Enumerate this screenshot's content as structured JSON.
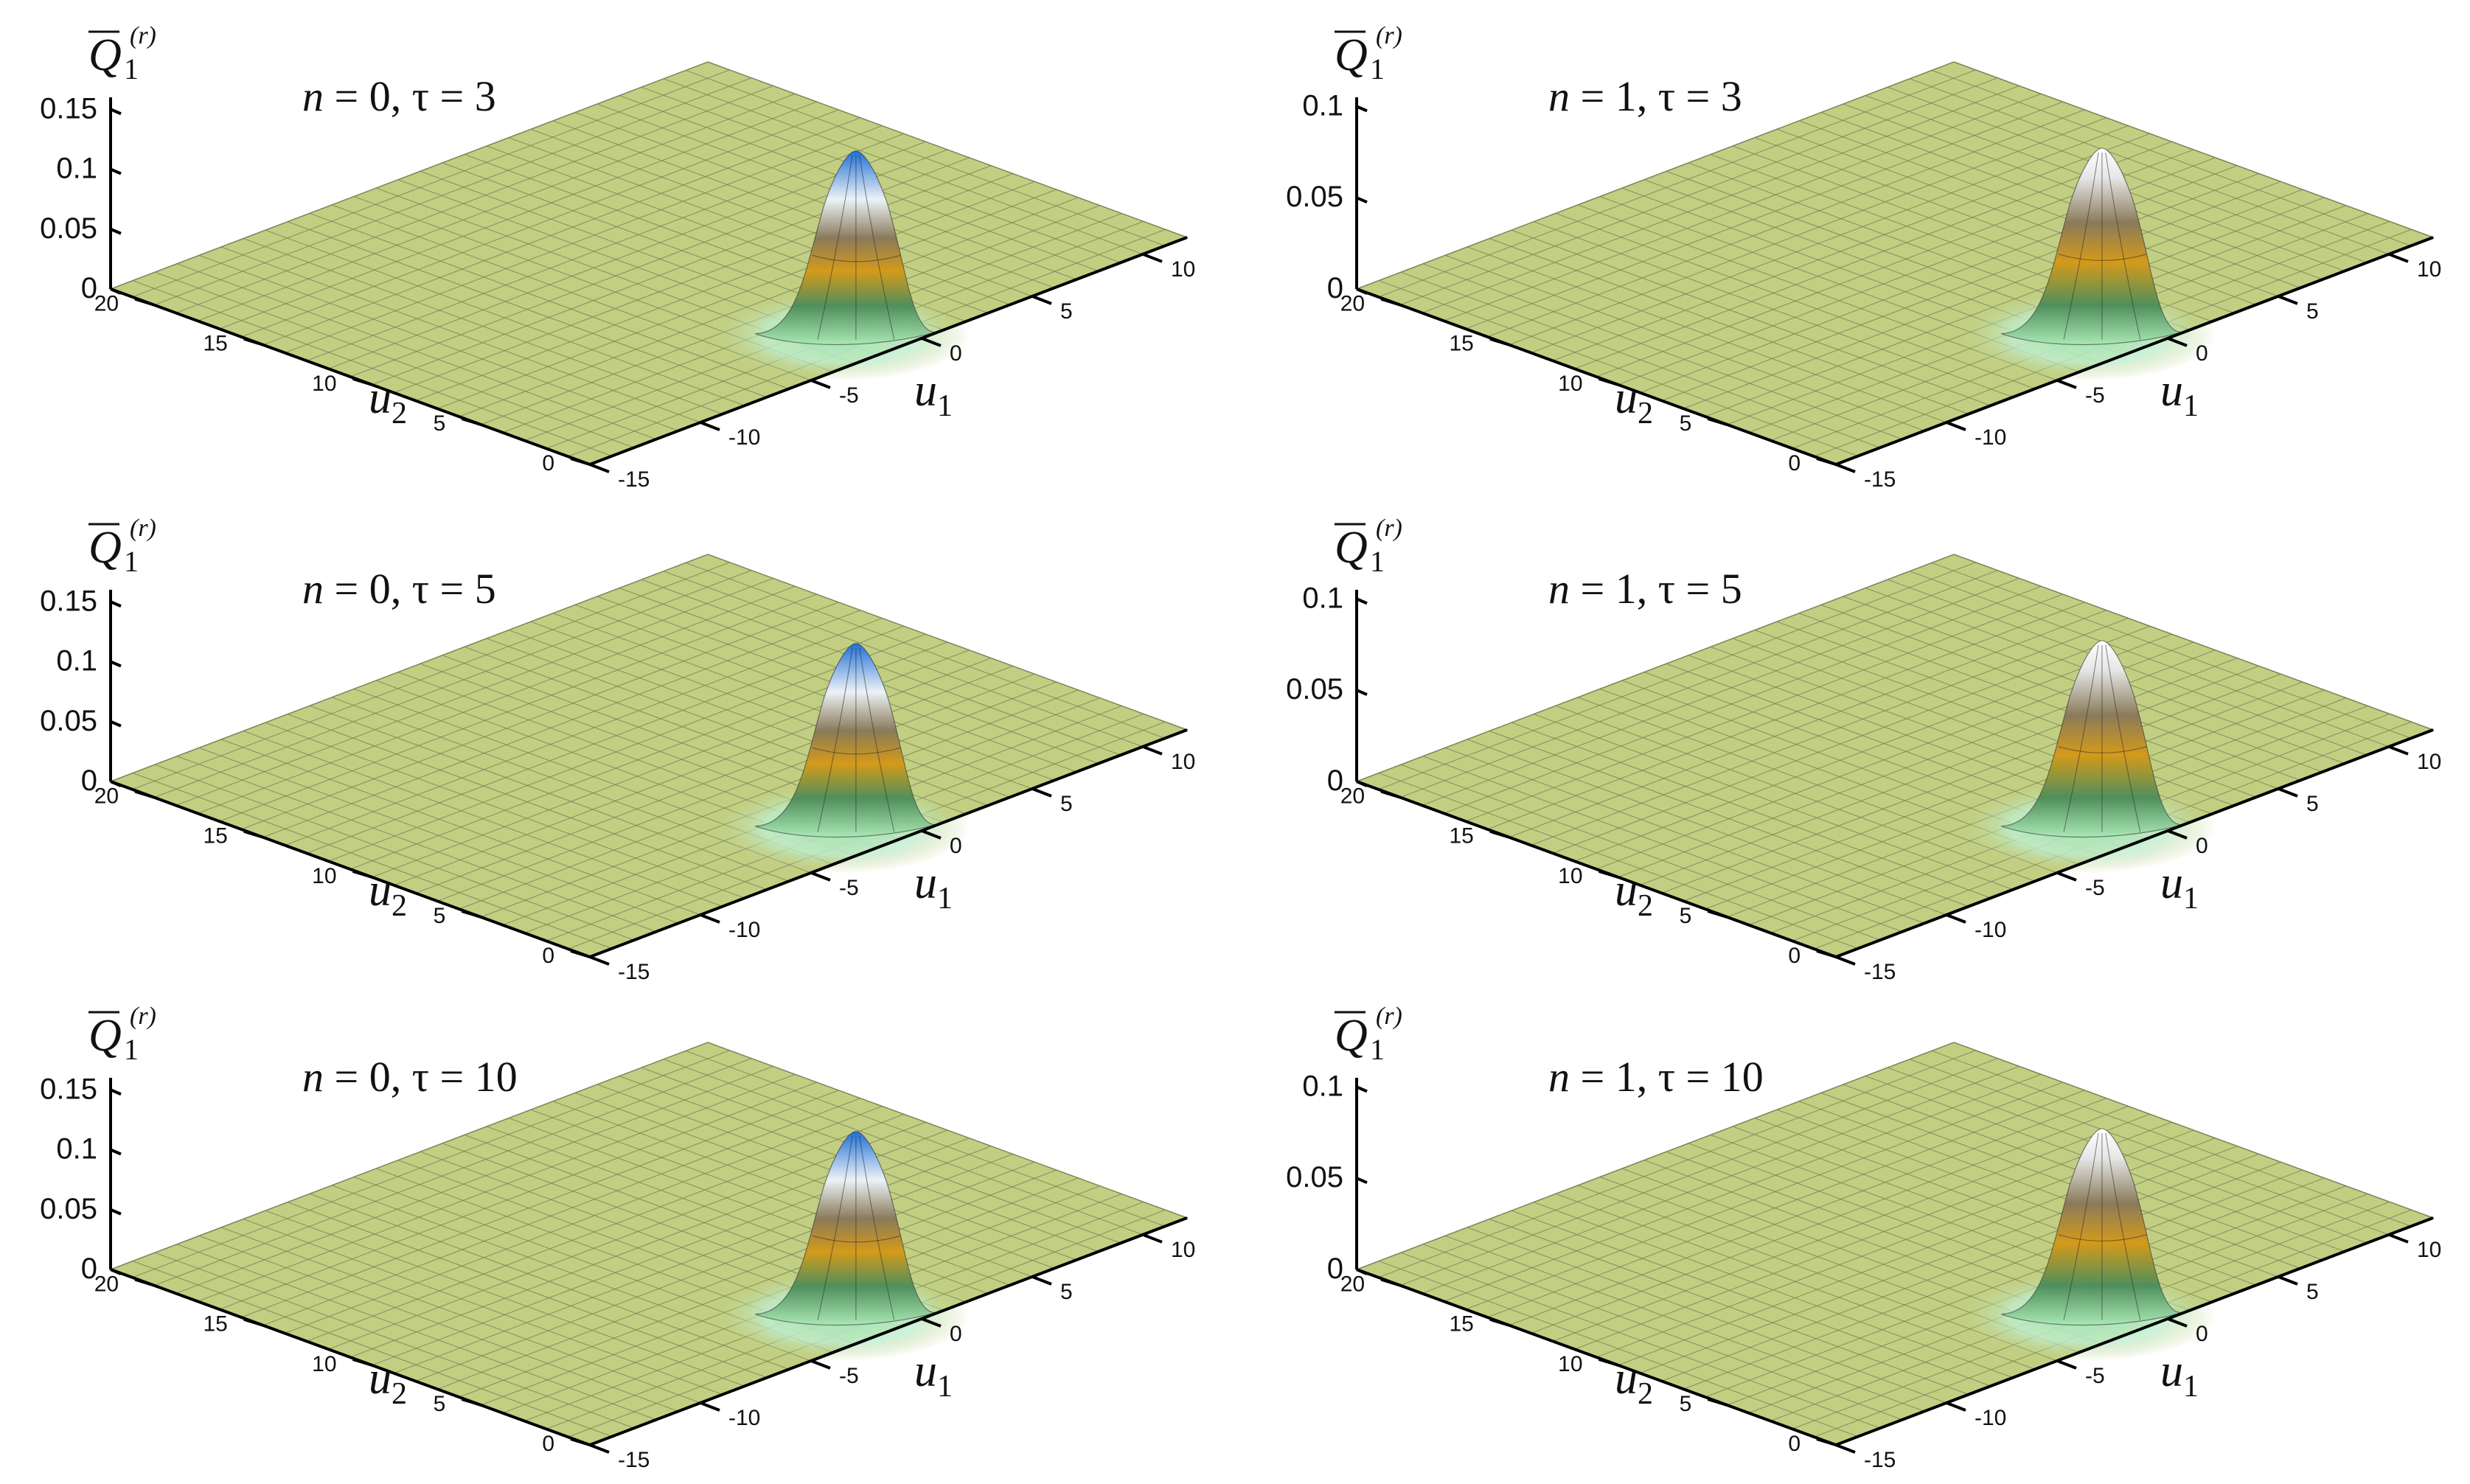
{
  "chart_data": [
    {
      "type": "surface",
      "title": "n = 0, τ = 3",
      "n": "0",
      "tau": "3",
      "zlabel": {
        "symbol": "Q",
        "subscript": "1",
        "superscript": "(r)"
      },
      "xlabel": {
        "symbol": "u",
        "subscript": "1"
      },
      "ylabel": {
        "symbol": "u",
        "subscript": "2"
      },
      "xlim": [
        -15,
        12
      ],
      "ylim": [
        0,
        22
      ],
      "zlim": [
        0,
        0.16
      ],
      "x_ticks": [
        "-15",
        "-10",
        "-5",
        "0",
        "5",
        "10"
      ],
      "y_ticks": [
        "0",
        "5",
        "10",
        "15",
        "20"
      ],
      "z_ticks": [
        "0",
        "0.05",
        "0.1",
        "0.15"
      ],
      "peak": {
        "u1": -1,
        "u2": 2,
        "value": 0.15,
        "width": 1.6
      },
      "colors": {
        "surface": "#c2cf82",
        "peak": "#1f6fd6"
      }
    },
    {
      "type": "surface",
      "title": "n = 1, τ = 3",
      "n": "1",
      "tau": "3",
      "zlabel": {
        "symbol": "Q",
        "subscript": "1",
        "superscript": "(r)"
      },
      "xlabel": {
        "symbol": "u",
        "subscript": "1"
      },
      "ylabel": {
        "symbol": "u",
        "subscript": "2"
      },
      "xlim": [
        -15,
        12
      ],
      "ylim": [
        0,
        22
      ],
      "zlim": [
        0,
        0.105
      ],
      "x_ticks": [
        "-15",
        "-10",
        "-5",
        "0",
        "5",
        "10"
      ],
      "y_ticks": [
        "0",
        "5",
        "10",
        "15",
        "20"
      ],
      "z_ticks": [
        "0",
        "0.05",
        "0.1"
      ],
      "peak": {
        "u1": -1,
        "u2": 2,
        "value": 0.1,
        "width": 1.8
      },
      "colors": {
        "surface": "#c2cf82",
        "peak": "#ffffff"
      }
    },
    {
      "type": "surface",
      "title": "n = 0, τ = 5",
      "n": "0",
      "tau": "5",
      "zlabel": {
        "symbol": "Q",
        "subscript": "1",
        "superscript": "(r)"
      },
      "xlabel": {
        "symbol": "u",
        "subscript": "1"
      },
      "ylabel": {
        "symbol": "u",
        "subscript": "2"
      },
      "xlim": [
        -15,
        12
      ],
      "ylim": [
        0,
        22
      ],
      "zlim": [
        0,
        0.16
      ],
      "x_ticks": [
        "-15",
        "-10",
        "-5",
        "0",
        "5",
        "10"
      ],
      "y_ticks": [
        "0",
        "5",
        "10",
        "15",
        "20"
      ],
      "z_ticks": [
        "0",
        "0.05",
        "0.1",
        "0.15"
      ],
      "peak": {
        "u1": -1,
        "u2": 2,
        "value": 0.15,
        "width": 1.6
      },
      "colors": {
        "surface": "#c2cf82",
        "peak": "#1f6fd6"
      }
    },
    {
      "type": "surface",
      "title": "n = 1, τ = 5",
      "n": "1",
      "tau": "5",
      "zlabel": {
        "symbol": "Q",
        "subscript": "1",
        "superscript": "(r)"
      },
      "xlabel": {
        "symbol": "u",
        "subscript": "1"
      },
      "ylabel": {
        "symbol": "u",
        "subscript": "2"
      },
      "xlim": [
        -15,
        12
      ],
      "ylim": [
        0,
        22
      ],
      "zlim": [
        0,
        0.105
      ],
      "x_ticks": [
        "-15",
        "-10",
        "-5",
        "0",
        "5",
        "10"
      ],
      "y_ticks": [
        "0",
        "5",
        "10",
        "15",
        "20"
      ],
      "z_ticks": [
        "0",
        "0.05",
        "0.1"
      ],
      "peak": {
        "u1": -1,
        "u2": 2,
        "value": 0.1,
        "width": 1.8
      },
      "colors": {
        "surface": "#c2cf82",
        "peak": "#ffffff"
      }
    },
    {
      "type": "surface",
      "title": "n = 0, τ = 10",
      "n": "0",
      "tau": "10",
      "zlabel": {
        "symbol": "Q",
        "subscript": "1",
        "superscript": "(r)"
      },
      "xlabel": {
        "symbol": "u",
        "subscript": "1"
      },
      "ylabel": {
        "symbol": "u",
        "subscript": "2"
      },
      "xlim": [
        -15,
        12
      ],
      "ylim": [
        0,
        22
      ],
      "zlim": [
        0,
        0.16
      ],
      "x_ticks": [
        "-15",
        "-10",
        "-5",
        "0",
        "5",
        "10"
      ],
      "y_ticks": [
        "0",
        "5",
        "10",
        "15",
        "20"
      ],
      "z_ticks": [
        "0",
        "0.05",
        "0.1",
        "0.15"
      ],
      "peak": {
        "u1": -1,
        "u2": 2,
        "value": 0.15,
        "width": 1.6
      },
      "colors": {
        "surface": "#c2cf82",
        "peak": "#1f6fd6"
      }
    },
    {
      "type": "surface",
      "title": "n = 1, τ = 10",
      "n": "1",
      "tau": "10",
      "zlabel": {
        "symbol": "Q",
        "subscript": "1",
        "superscript": "(r)"
      },
      "xlabel": {
        "symbol": "u",
        "subscript": "1"
      },
      "ylabel": {
        "symbol": "u",
        "subscript": "2"
      },
      "xlim": [
        -15,
        12
      ],
      "ylim": [
        0,
        22
      ],
      "zlim": [
        0,
        0.105
      ],
      "x_ticks": [
        "-15",
        "-10",
        "-5",
        "0",
        "5",
        "10"
      ],
      "y_ticks": [
        "0",
        "5",
        "10",
        "15",
        "20"
      ],
      "z_ticks": [
        "0",
        "0.05",
        "0.1"
      ],
      "peak": {
        "u1": -1,
        "u2": 2,
        "value": 0.1,
        "width": 1.8
      },
      "colors": {
        "surface": "#c2cf82",
        "peak": "#ffffff"
      }
    }
  ]
}
